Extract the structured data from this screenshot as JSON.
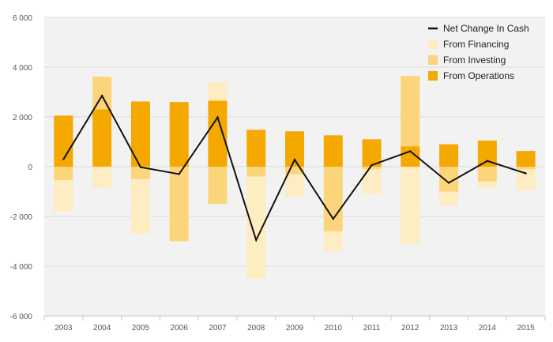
{
  "chart_data": {
    "type": "bar",
    "title": "",
    "xlabel": "",
    "ylabel": "",
    "categories": [
      "2003",
      "2004",
      "2005",
      "2006",
      "2007",
      "2008",
      "2009",
      "2010",
      "2011",
      "2012",
      "2013",
      "2014",
      "2015"
    ],
    "ylim": [
      -6000,
      6000
    ],
    "yticks": [
      -6000,
      -4000,
      -2000,
      0,
      2000,
      4000,
      6000
    ],
    "ytick_labels": [
      "-6 000",
      "-4 000",
      "-2 000",
      "0",
      "2 000",
      "4 000",
      "6 000"
    ],
    "grid": true,
    "legend_position": "top-right",
    "stacking": "diverging",
    "series": [
      {
        "name": "From Operations",
        "kind": "bar",
        "color": "#f5a800",
        "values": [
          2050,
          2300,
          2620,
          2600,
          2650,
          1480,
          1420,
          1260,
          1100,
          820,
          900,
          1050,
          630
        ]
      },
      {
        "name": "From Investing",
        "kind": "bar",
        "color": "#fcd57a",
        "values": [
          -550,
          1320,
          -500,
          -3000,
          -1500,
          -400,
          -300,
          -2600,
          -100,
          2820,
          -1000,
          -600,
          -100
        ]
      },
      {
        "name": "From Financing",
        "kind": "bar",
        "color": "#feecc2",
        "values": [
          -1250,
          -850,
          -2200,
          0,
          750,
          -4100,
          -900,
          -800,
          -1000,
          -3100,
          -550,
          -250,
          -850
        ]
      },
      {
        "name": "Net Change In Cash",
        "kind": "line",
        "color": "#111111",
        "values": [
          300,
          2850,
          -20,
          -300,
          1980,
          -2950,
          280,
          -2100,
          60,
          620,
          -650,
          230,
          -270
        ]
      }
    ],
    "legend": [
      {
        "label": "Net Change In Cash",
        "color": "#111111",
        "marker": "line"
      },
      {
        "label": "From Financing",
        "color": "#feecc2",
        "marker": "square"
      },
      {
        "label": "From Investing",
        "color": "#fcd57a",
        "marker": "square"
      },
      {
        "label": "From Operations",
        "color": "#f5a800",
        "marker": "square"
      }
    ]
  }
}
